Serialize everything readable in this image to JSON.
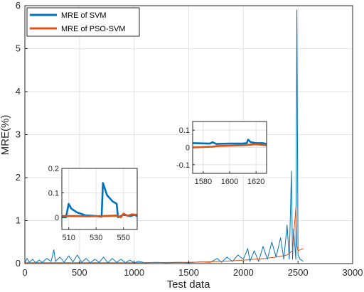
{
  "chart_data": {
    "type": "line",
    "xlabel": "Test data",
    "ylabel": "MRE(%)",
    "xlim": [
      0,
      3000
    ],
    "ylim": [
      0,
      6
    ],
    "xticks": [
      "0",
      "500",
      "1000",
      "1500",
      "2000",
      "2500",
      "3000"
    ],
    "yticks": [
      "0",
      "1",
      "2",
      "3",
      "4",
      "5",
      "6"
    ],
    "grid": true,
    "legend": {
      "position": "top-left"
    },
    "colors": {
      "svm": "#0072BD",
      "pso": "#D95319"
    },
    "series": [
      {
        "name": "MRE of SVM",
        "color": "#0072BD",
        "points": [
          [
            0,
            0.02
          ],
          [
            20,
            0.12
          ],
          [
            40,
            0.03
          ],
          [
            70,
            0.1
          ],
          [
            100,
            0.02
          ],
          [
            130,
            0.08
          ],
          [
            160,
            0.03
          ],
          [
            200,
            0.12
          ],
          [
            240,
            0.05
          ],
          [
            265,
            0.32
          ],
          [
            280,
            0.05
          ],
          [
            320,
            0.15
          ],
          [
            360,
            0.03
          ],
          [
            400,
            0.18
          ],
          [
            440,
            0.04
          ],
          [
            480,
            0.2
          ],
          [
            520,
            0.03
          ],
          [
            560,
            0.12
          ],
          [
            600,
            0.02
          ],
          [
            640,
            0.1
          ],
          [
            680,
            0.03
          ],
          [
            720,
            0.15
          ],
          [
            760,
            0.02
          ],
          [
            800,
            0.12
          ],
          [
            840,
            0.03
          ],
          [
            880,
            0.1
          ],
          [
            920,
            0.02
          ],
          [
            960,
            0.08
          ],
          [
            1000,
            0.02
          ],
          [
            1040,
            0.05
          ],
          [
            1100,
            0.02
          ],
          [
            1200,
            0.03
          ],
          [
            1300,
            0.02
          ],
          [
            1400,
            0.03
          ],
          [
            1500,
            0.02
          ],
          [
            1600,
            0.04
          ],
          [
            1700,
            0.03
          ],
          [
            1760,
            0.12
          ],
          [
            1800,
            0.03
          ],
          [
            1850,
            0.15
          ],
          [
            1900,
            0.05
          ],
          [
            1950,
            0.2
          ],
          [
            2000,
            0.1
          ],
          [
            2040,
            0.35
          ],
          [
            2060,
            0.05
          ],
          [
            2100,
            0.3
          ],
          [
            2140,
            0.05
          ],
          [
            2180,
            0.4
          ],
          [
            2220,
            0.1
          ],
          [
            2260,
            0.5
          ],
          [
            2300,
            0.15
          ],
          [
            2340,
            0.6
          ],
          [
            2370,
            0.1
          ],
          [
            2400,
            0.9
          ],
          [
            2420,
            0.1
          ],
          [
            2440,
            2.15
          ],
          [
            2450,
            0.1
          ],
          [
            2460,
            0.8
          ],
          [
            2480,
            0.1
          ],
          [
            2490,
            5.9
          ],
          [
            2500,
            0.2
          ],
          [
            2520,
            0.1
          ],
          [
            2550,
            0.05
          ]
        ]
      },
      {
        "name": "MRE of PSO-SVM",
        "color": "#D95319",
        "points": [
          [
            0,
            0.02
          ],
          [
            500,
            0.02
          ],
          [
            1000,
            0.02
          ],
          [
            1500,
            0.03
          ],
          [
            1800,
            0.05
          ],
          [
            2000,
            0.08
          ],
          [
            2100,
            0.1
          ],
          [
            2200,
            0.12
          ],
          [
            2300,
            0.15
          ],
          [
            2400,
            0.2
          ],
          [
            2450,
            0.3
          ],
          [
            2480,
            1.3
          ],
          [
            2490,
            0.4
          ],
          [
            2500,
            0.3
          ],
          [
            2550,
            0.35
          ]
        ]
      }
    ],
    "insets": [
      {
        "xlim": [
          505,
          560
        ],
        "ylim": [
          -0.05,
          0.2
        ],
        "xticks": [
          "510",
          "530",
          "550"
        ],
        "yticks": [
          "0",
          "0.1",
          "0.2"
        ],
        "series": [
          {
            "name": "MRE of SVM",
            "points": [
              [
                505,
                0.0
              ],
              [
                508,
                0.0
              ],
              [
                510,
                0.055
              ],
              [
                512,
                0.035
              ],
              [
                516,
                0.02
              ],
              [
                522,
                0.008
              ],
              [
                530,
                0.005
              ],
              [
                534,
                0.002
              ],
              [
                535,
                0.14
              ],
              [
                538,
                0.09
              ],
              [
                542,
                0.065
              ],
              [
                545,
                0.055
              ],
              [
                546,
                0.0
              ],
              [
                550,
                0.01
              ],
              [
                555,
                0.005
              ],
              [
                558,
                0.01
              ],
              [
                560,
                0.005
              ]
            ]
          },
          {
            "name": "MRE of PSO-SVM",
            "points": [
              [
                505,
                0.005
              ],
              [
                515,
                0.005
              ],
              [
                525,
                0.004
              ],
              [
                535,
                0.005
              ],
              [
                545,
                0.007
              ],
              [
                548,
                0.0
              ],
              [
                550,
                0.015
              ],
              [
                553,
                0.006
              ],
              [
                556,
                0.012
              ],
              [
                560,
                0.01
              ]
            ]
          }
        ]
      },
      {
        "xlim": [
          1572,
          1628
        ],
        "ylim": [
          -0.15,
          0.15
        ],
        "xticks": [
          "1580",
          "1600",
          "1620"
        ],
        "yticks": [
          "-0.1",
          "0",
          "0.1"
        ],
        "series": [
          {
            "name": "MRE of SVM",
            "points": [
              [
                1572,
                0.025
              ],
              [
                1585,
                0.022
              ],
              [
                1587,
                0.03
              ],
              [
                1590,
                0.02
              ],
              [
                1600,
                0.022
              ],
              [
                1610,
                0.022
              ],
              [
                1613,
                0.025
              ],
              [
                1614,
                0.045
              ],
              [
                1616,
                0.03
              ],
              [
                1620,
                0.025
              ],
              [
                1625,
                0.025
              ],
              [
                1628,
                0.02
              ]
            ]
          },
          {
            "name": "MRE of PSO-SVM",
            "points": [
              [
                1572,
                0.0
              ],
              [
                1580,
                0.002
              ],
              [
                1587,
                0.004
              ],
              [
                1590,
                0.008
              ],
              [
                1600,
                0.01
              ],
              [
                1610,
                0.012
              ],
              [
                1614,
                0.015
              ],
              [
                1620,
                0.018
              ],
              [
                1625,
                0.015
              ],
              [
                1628,
                0.012
              ]
            ]
          }
        ]
      }
    ]
  }
}
